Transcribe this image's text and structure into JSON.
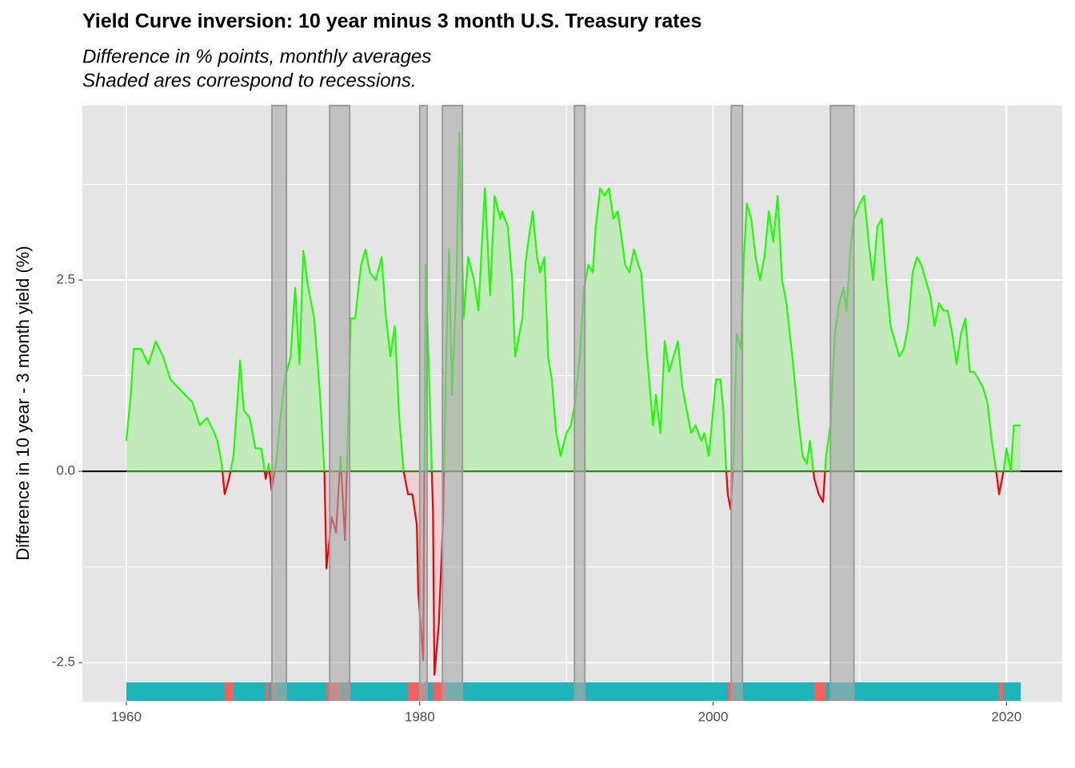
{
  "chart_data": {
    "type": "area-line",
    "title": "Yield Curve inversion: 10 year minus 3 month U.S. Treasury rates",
    "subtitle": "Difference in % points, monthly averages",
    "subtitle2": "Shaded ares correspond to recessions.",
    "y_label": "Difference in 10 year - 3 month yield (%)",
    "xlim": [
      1957,
      2023.8
    ],
    "ylim": [
      -3.01,
      4.78
    ],
    "xticks": [
      1960,
      1980,
      2000,
      2020
    ],
    "yticks": [
      -2.5,
      {
        "value": 0,
        "label": "0.0"
      },
      2.5
    ],
    "grid": true,
    "colors": {
      "positive_line": "#1aff00",
      "negative_line": "#e8000b",
      "positive_fill": "#c0eab8",
      "negative_fill": "#f2cfd0",
      "positive_band": "#1cb4b8",
      "negative_band": "#f0625f",
      "recession": "#a8a8a8"
    },
    "recessions": [
      [
        1969.93,
        1970.91
      ],
      [
        1973.86,
        1975.22
      ],
      [
        1980.0,
        1980.5
      ],
      [
        1981.55,
        1982.91
      ],
      [
        1990.55,
        1991.26
      ],
      [
        2001.24,
        2002.0
      ],
      [
        2008.0,
        2009.6
      ]
    ],
    "x": [
      1960.0,
      1960.3,
      1960.5,
      1961.0,
      1961.5,
      1962.0,
      1962.5,
      1963.0,
      1963.5,
      1964.0,
      1964.5,
      1965.0,
      1965.5,
      1966.0,
      1966.2,
      1966.5,
      1966.7,
      1967.0,
      1967.3,
      1967.6,
      1967.75,
      1968.0,
      1968.4,
      1968.8,
      1969.2,
      1969.5,
      1969.7,
      1969.9,
      1970.2,
      1970.5,
      1970.8,
      1971.2,
      1971.5,
      1971.8,
      1972.06,
      1972.4,
      1972.8,
      1973.2,
      1973.5,
      1973.64,
      1974.0,
      1974.3,
      1974.6,
      1974.9,
      1975.1,
      1975.3,
      1975.6,
      1976.0,
      1976.3,
      1976.6,
      1977.0,
      1977.4,
      1977.7,
      1978.0,
      1978.3,
      1978.6,
      1978.9,
      1979.2,
      1979.5,
      1979.8,
      1979.9,
      1980.24,
      1980.4,
      1980.6,
      1980.9,
      1981.0,
      1981.3,
      1981.6,
      1981.8,
      1982.0,
      1982.2,
      1982.5,
      1982.7,
      1983.0,
      1983.3,
      1983.7,
      1984.0,
      1984.44,
      1984.8,
      1985.1,
      1985.5,
      1985.6,
      1986.0,
      1986.3,
      1986.5,
      1987.0,
      1987.2,
      1987.4,
      1987.7,
      1988.0,
      1988.2,
      1988.5,
      1988.75,
      1989.0,
      1989.3,
      1989.6,
      1990.0,
      1990.3,
      1990.6,
      1990.9,
      1991.2,
      1991.5,
      1991.8,
      1992.0,
      1992.3,
      1992.6,
      1992.9,
      1993.2,
      1993.5,
      1993.8,
      1994.0,
      1994.3,
      1994.6,
      1994.9,
      1995.1,
      1995.5,
      1995.9,
      1996.1,
      1996.4,
      1996.7,
      1997.0,
      1997.3,
      1997.6,
      1997.9,
      1998.2,
      1998.5,
      1998.8,
      1999.2,
      1999.4,
      1999.7,
      2000.0,
      2000.2,
      2000.5,
      2000.7,
      2000.9,
      2001.0,
      2001.2,
      2001.4,
      2001.6,
      2001.9,
      2002.1,
      2002.3,
      2002.6,
      2002.9,
      2003.2,
      2003.5,
      2003.8,
      2004.1,
      2004.4,
      2004.7,
      2005.0,
      2005.4,
      2005.8,
      2006.1,
      2006.4,
      2006.6,
      2006.9,
      2007.2,
      2007.5,
      2007.7,
      2008.0,
      2008.3,
      2008.6,
      2008.9,
      2009.1,
      2009.4,
      2009.6,
      2010.0,
      2010.3,
      2010.6,
      2010.9,
      2011.2,
      2011.5,
      2011.8,
      2012.1,
      2012.4,
      2012.7,
      2013.0,
      2013.3,
      2013.6,
      2013.9,
      2014.2,
      2014.5,
      2014.8,
      2015.1,
      2015.4,
      2015.7,
      2016.0,
      2016.3,
      2016.6,
      2016.9,
      2017.2,
      2017.5,
      2017.8,
      2018.1,
      2018.4,
      2018.7,
      2019.0,
      2019.3,
      2019.5,
      2019.8,
      2020.0,
      2020.3,
      2020.5,
      2020.95
    ],
    "values": [
      0.4,
      1.0,
      1.6,
      1.6,
      1.4,
      1.7,
      1.5,
      1.2,
      1.1,
      1.0,
      0.9,
      0.6,
      0.7,
      0.5,
      0.4,
      0.1,
      -0.3,
      -0.1,
      0.2,
      1.0,
      1.45,
      0.8,
      0.7,
      0.3,
      0.3,
      -0.1,
      0.1,
      -0.25,
      0.1,
      0.7,
      1.2,
      1.5,
      2.4,
      1.4,
      2.88,
      2.4,
      2.0,
      1.0,
      0.0,
      -1.27,
      -0.6,
      -0.8,
      0.2,
      -0.9,
      0.5,
      2.0,
      2.0,
      2.7,
      2.9,
      2.6,
      2.5,
      2.8,
      2.0,
      1.5,
      1.9,
      0.7,
      0.0,
      -0.3,
      -0.3,
      -0.7,
      -1.6,
      -2.47,
      2.7,
      1.5,
      -0.5,
      -2.66,
      -2.0,
      -0.6,
      1.5,
      2.9,
      1.0,
      2.5,
      4.43,
      2.0,
      2.8,
      2.5,
      2.1,
      3.7,
      2.3,
      3.6,
      3.3,
      3.4,
      3.2,
      2.5,
      1.5,
      2.0,
      2.7,
      3.0,
      3.4,
      2.8,
      2.6,
      2.8,
      1.5,
      1.2,
      0.5,
      0.2,
      0.5,
      0.6,
      0.9,
      1.5,
      2.4,
      2.7,
      2.6,
      3.2,
      3.7,
      3.6,
      3.7,
      3.3,
      3.4,
      3.0,
      2.7,
      2.6,
      2.9,
      2.7,
      2.6,
      1.5,
      0.6,
      1.0,
      0.5,
      1.7,
      1.3,
      1.5,
      1.7,
      1.1,
      0.8,
      0.5,
      0.6,
      0.4,
      0.5,
      0.2,
      0.8,
      1.2,
      1.2,
      0.8,
      0.0,
      -0.3,
      -0.5,
      0.2,
      1.8,
      1.6,
      2.8,
      3.5,
      3.3,
      2.8,
      2.5,
      2.8,
      3.4,
      3.0,
      3.6,
      2.5,
      2.2,
      1.5,
      0.7,
      0.2,
      0.1,
      0.4,
      -0.1,
      -0.3,
      -0.4,
      0.2,
      0.6,
      1.8,
      2.2,
      2.4,
      2.1,
      3.0,
      3.3,
      3.5,
      3.6,
      3.0,
      2.5,
      3.2,
      3.3,
      2.5,
      1.9,
      1.7,
      1.5,
      1.6,
      1.9,
      2.6,
      2.8,
      2.7,
      2.5,
      2.3,
      1.9,
      2.2,
      2.1,
      2.1,
      1.8,
      1.4,
      1.8,
      2.0,
      1.3,
      1.3,
      1.2,
      1.1,
      0.9,
      0.4,
      0.0,
      -0.3,
      0.0,
      0.3,
      0.0,
      0.6,
      0.6
    ]
  }
}
